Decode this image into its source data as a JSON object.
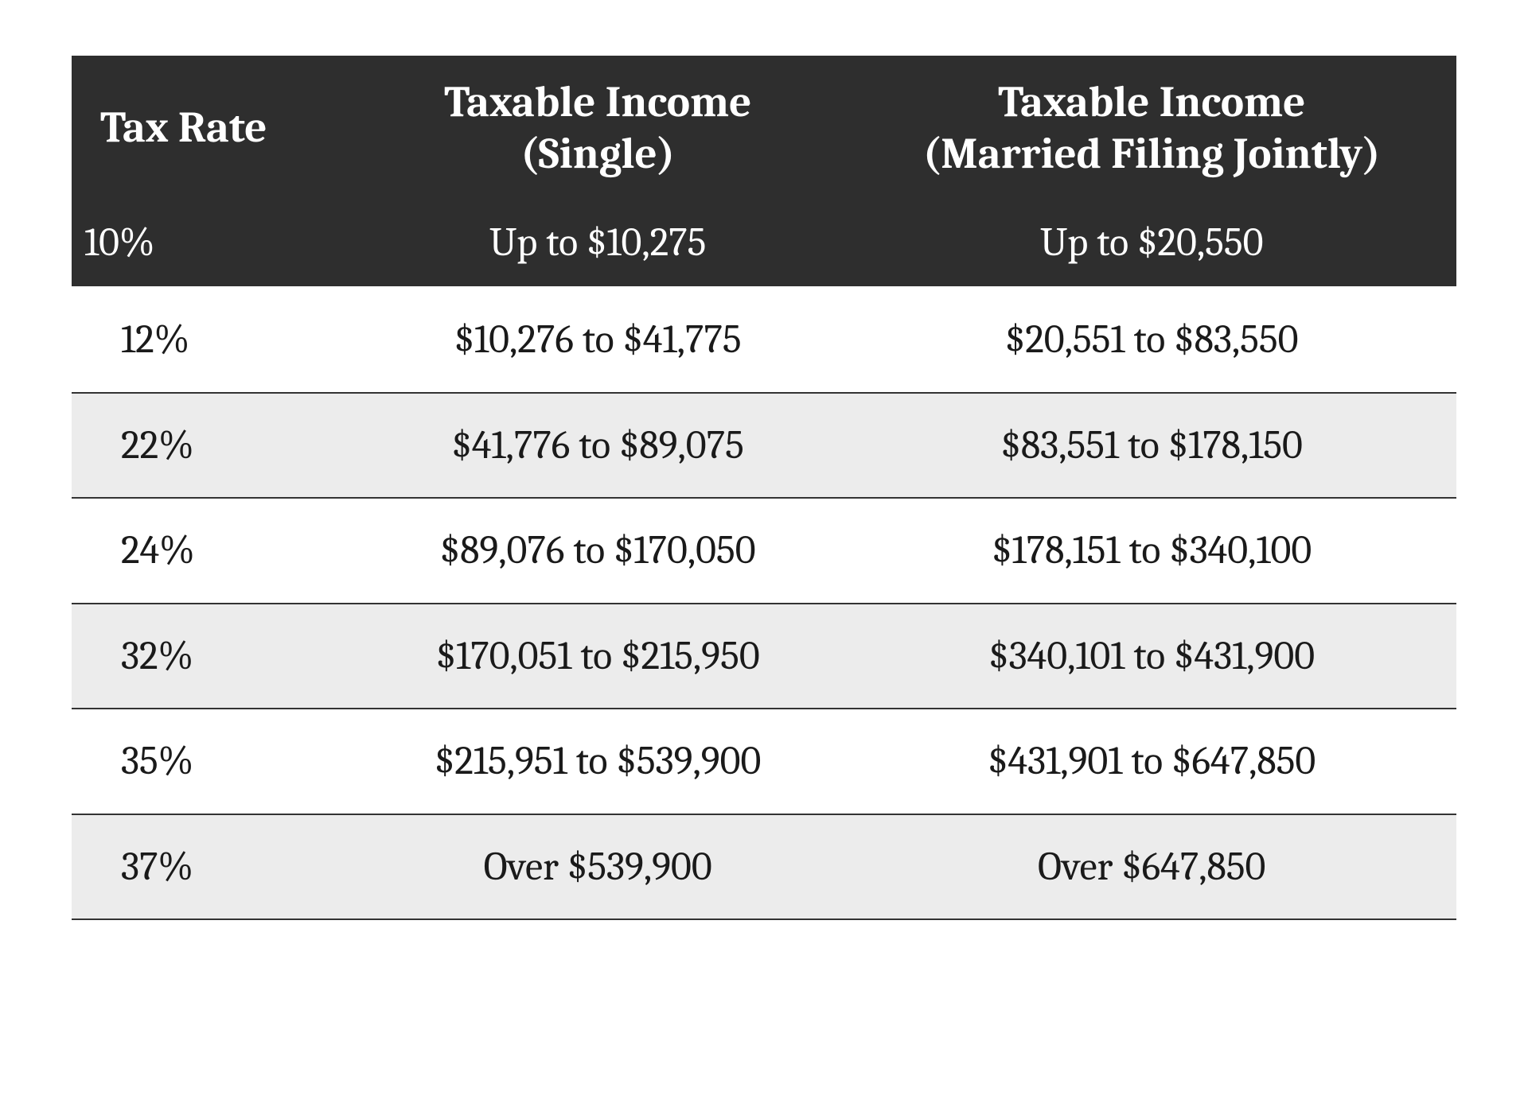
{
  "table": {
    "type": "table",
    "background_color": "#ffffff",
    "header_bg": "#2e2e2e",
    "header_fg": "#ffffff",
    "row_alt_bg": "#ececec",
    "row_bg": "#ffffff",
    "row_fg": "#1a1a1a",
    "border_color": "#333333",
    "header_fontsize": 55,
    "cell_fontsize": 50,
    "font_family": "Cambria / Georgia serif",
    "column_widths_pct": [
      20,
      36,
      44
    ],
    "columns": [
      "Tax Rate",
      "Taxable Income\n(Single)",
      "Taxable Income\n(Married Filing Jointly)"
    ],
    "rows": [
      {
        "rate": "10%",
        "single": "Up to $10,275",
        "married": "Up to $20,550",
        "style": "dark"
      },
      {
        "rate": "12%",
        "single": "$10,276 to $41,775",
        "married": "$20,551 to $83,550",
        "style": "white"
      },
      {
        "rate": "22%",
        "single": "$41,776 to $89,075",
        "married": "$83,551 to $178,150",
        "style": "gray"
      },
      {
        "rate": "24%",
        "single": "$89,076 to $170,050",
        "married": "$178,151 to $340,100",
        "style": "white"
      },
      {
        "rate": "32%",
        "single": "$170,051 to $215,950",
        "married": "$340,101 to $431,900",
        "style": "gray",
        "wrap_single": true
      },
      {
        "rate": "35%",
        "single": "$215,951 to $539,900",
        "married": "$431,901 to $647,850",
        "style": "white",
        "wrap_single": true
      },
      {
        "rate": "37%",
        "single": "Over $539,900",
        "married": "Over $647,850",
        "style": "gray"
      }
    ]
  }
}
